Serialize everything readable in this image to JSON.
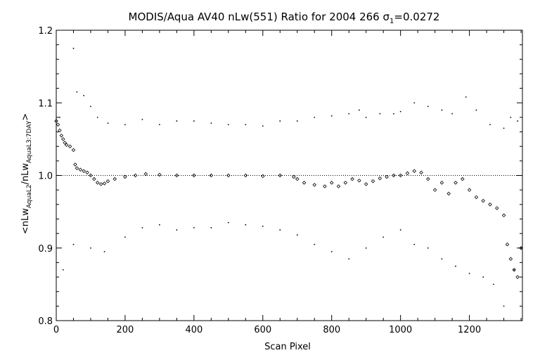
{
  "chart_data": {
    "type": "scatter",
    "title_parts": {
      "main": "MODIS/Aqua AV40 nLw(551) Ratio for 2004 266 ",
      "sigma": "σ",
      "sigma_sub": "1",
      "value": "=0.0272"
    },
    "xlabel": "Scan Pixel",
    "ylabel_parts": {
      "open": "<nLw",
      "sub1": "AquaL2",
      "mid": "/nLw",
      "sub2": "AquaL3:7DAY",
      "close": ">"
    },
    "xlim": [
      0,
      1354
    ],
    "ylim": [
      0.8,
      1.2
    ],
    "x_ticks": [
      0,
      200,
      400,
      600,
      800,
      1000,
      1200
    ],
    "x_tick_labels": [
      "0",
      "200",
      "400",
      "600",
      "800",
      "1000",
      "1200"
    ],
    "y_ticks": [
      0.8,
      0.9,
      1.0,
      1.1,
      1.2
    ],
    "y_tick_labels": [
      "0.8",
      "0.9",
      "1.0",
      "1.1",
      "1.2"
    ],
    "reference_line": 1.0,
    "grid": false,
    "series": [
      {
        "role": "mean",
        "marker": "diamond",
        "points": [
          [
            0,
            1.075
          ],
          [
            5,
            1.07
          ],
          [
            10,
            1.062
          ],
          [
            15,
            1.055
          ],
          [
            20,
            1.05
          ],
          [
            25,
            1.045
          ],
          [
            30,
            1.042
          ],
          [
            40,
            1.04
          ],
          [
            50,
            1.035
          ],
          [
            55,
            1.015
          ],
          [
            60,
            1.01
          ],
          [
            70,
            1.008
          ],
          [
            80,
            1.006
          ],
          [
            90,
            1.004
          ],
          [
            100,
            1.0
          ],
          [
            110,
            0.995
          ],
          [
            120,
            0.99
          ],
          [
            130,
            0.988
          ],
          [
            140,
            0.989
          ],
          [
            150,
            0.992
          ],
          [
            170,
            0.995
          ],
          [
            200,
            0.998
          ],
          [
            230,
            1.0
          ],
          [
            260,
            1.002
          ],
          [
            300,
            1.001
          ],
          [
            350,
            1.0
          ],
          [
            400,
            1.0
          ],
          [
            450,
            1.0
          ],
          [
            500,
            1.0
          ],
          [
            550,
            1.0
          ],
          [
            600,
            0.999
          ],
          [
            650,
            1.0
          ],
          [
            690,
            0.998
          ],
          [
            700,
            0.995
          ],
          [
            720,
            0.99
          ],
          [
            750,
            0.987
          ],
          [
            780,
            0.985
          ],
          [
            800,
            0.99
          ],
          [
            820,
            0.985
          ],
          [
            840,
            0.99
          ],
          [
            860,
            0.995
          ],
          [
            880,
            0.993
          ],
          [
            900,
            0.988
          ],
          [
            920,
            0.992
          ],
          [
            940,
            0.996
          ],
          [
            960,
            0.998
          ],
          [
            980,
            1.0
          ],
          [
            1000,
            1.0
          ],
          [
            1020,
            1.003
          ],
          [
            1040,
            1.006
          ],
          [
            1060,
            1.004
          ],
          [
            1080,
            0.995
          ],
          [
            1100,
            0.98
          ],
          [
            1120,
            0.99
          ],
          [
            1140,
            0.975
          ],
          [
            1160,
            0.99
          ],
          [
            1180,
            0.995
          ],
          [
            1200,
            0.98
          ],
          [
            1220,
            0.97
          ],
          [
            1240,
            0.965
          ],
          [
            1260,
            0.96
          ],
          [
            1280,
            0.955
          ],
          [
            1300,
            0.945
          ],
          [
            1310,
            0.905
          ],
          [
            1320,
            0.885
          ],
          [
            1330,
            0.87
          ],
          [
            1340,
            0.86
          ],
          [
            1350,
            0.9
          ]
        ]
      },
      {
        "role": "upper",
        "marker": "dot",
        "points": [
          [
            10,
            1.08
          ],
          [
            50,
            1.175
          ],
          [
            60,
            1.115
          ],
          [
            80,
            1.11
          ],
          [
            100,
            1.095
          ],
          [
            120,
            1.08
          ],
          [
            150,
            1.072
          ],
          [
            200,
            1.07
          ],
          [
            250,
            1.077
          ],
          [
            300,
            1.07
          ],
          [
            350,
            1.075
          ],
          [
            400,
            1.075
          ],
          [
            450,
            1.072
          ],
          [
            500,
            1.07
          ],
          [
            550,
            1.07
          ],
          [
            600,
            1.068
          ],
          [
            650,
            1.075
          ],
          [
            700,
            1.075
          ],
          [
            750,
            1.08
          ],
          [
            800,
            1.082
          ],
          [
            850,
            1.085
          ],
          [
            880,
            1.09
          ],
          [
            900,
            1.08
          ],
          [
            940,
            1.085
          ],
          [
            980,
            1.085
          ],
          [
            1000,
            1.088
          ],
          [
            1040,
            1.1
          ],
          [
            1080,
            1.095
          ],
          [
            1120,
            1.09
          ],
          [
            1150,
            1.085
          ],
          [
            1190,
            1.108
          ],
          [
            1220,
            1.09
          ],
          [
            1260,
            1.07
          ],
          [
            1300,
            1.065
          ],
          [
            1320,
            1.08
          ],
          [
            1340,
            1.075
          ]
        ]
      },
      {
        "role": "lower",
        "marker": "dot",
        "points": [
          [
            20,
            0.87
          ],
          [
            50,
            0.905
          ],
          [
            100,
            0.9
          ],
          [
            140,
            0.895
          ],
          [
            200,
            0.915
          ],
          [
            250,
            0.928
          ],
          [
            300,
            0.932
          ],
          [
            350,
            0.925
          ],
          [
            400,
            0.928
          ],
          [
            450,
            0.928
          ],
          [
            500,
            0.935
          ],
          [
            550,
            0.932
          ],
          [
            600,
            0.93
          ],
          [
            650,
            0.925
          ],
          [
            700,
            0.918
          ],
          [
            750,
            0.905
          ],
          [
            800,
            0.895
          ],
          [
            850,
            0.885
          ],
          [
            900,
            0.9
          ],
          [
            950,
            0.915
          ],
          [
            1000,
            0.925
          ],
          [
            1040,
            0.905
          ],
          [
            1080,
            0.9
          ],
          [
            1120,
            0.885
          ],
          [
            1160,
            0.875
          ],
          [
            1200,
            0.865
          ],
          [
            1240,
            0.86
          ],
          [
            1270,
            0.85
          ],
          [
            1300,
            0.82
          ],
          [
            1330,
            0.87
          ],
          [
            1350,
            0.9
          ]
        ]
      }
    ]
  }
}
